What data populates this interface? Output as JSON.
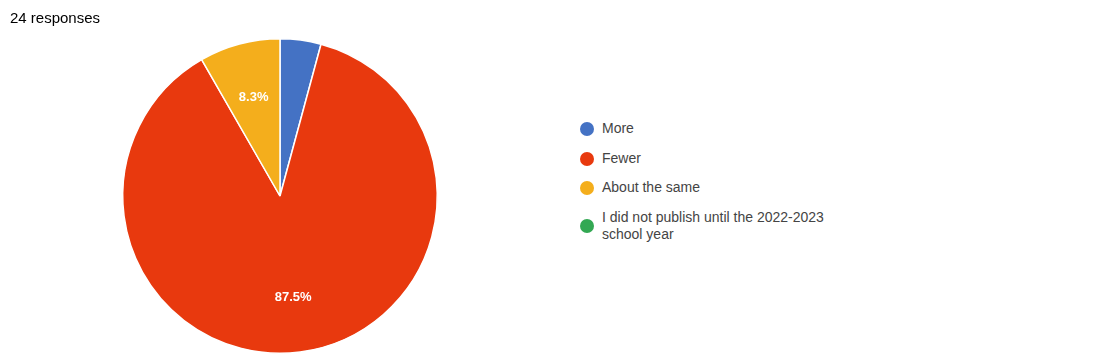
{
  "chart_data": {
    "type": "pie",
    "title": "24 responses",
    "categories": [
      "More",
      "Fewer",
      "About the same",
      "I did not publish until the 2022-2023\nschool year"
    ],
    "values": [
      4.2,
      87.5,
      8.3,
      0
    ],
    "value_labels": [
      null,
      "87.5%",
      "8.3%",
      null
    ],
    "colors": [
      "#4472C4",
      "#E8390E",
      "#F4AE1C",
      "#33A853"
    ],
    "data_labels": true,
    "legend": "right"
  }
}
